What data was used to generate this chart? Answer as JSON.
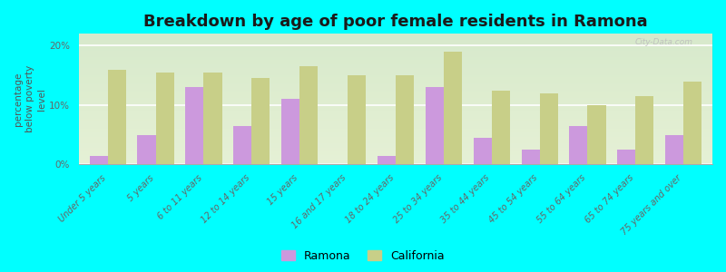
{
  "title": "Breakdown by age of poor female residents in Ramona",
  "ylabel": "percentage\nbelow poverty\nlevel",
  "background_color": "#00FFFF",
  "plot_bg_gradient_top": "#f0f5e0",
  "plot_bg_gradient_bottom": "#e8f0d8",
  "categories": [
    "Under 5 years",
    "5 years",
    "6 to 11 years",
    "12 to 14 years",
    "15 years",
    "16 and 17 years",
    "18 to 24 years",
    "25 to 34 years",
    "35 to 44 years",
    "45 to 54 years",
    "55 to 64 years",
    "65 to 74 years",
    "75 years and over"
  ],
  "ramona": [
    1.5,
    5.0,
    13.0,
    6.5,
    11.0,
    0.0,
    1.5,
    13.0,
    4.5,
    2.5,
    6.5,
    2.5,
    5.0
  ],
  "california": [
    16.0,
    15.5,
    15.5,
    14.5,
    16.5,
    15.0,
    15.0,
    19.0,
    12.5,
    12.0,
    10.0,
    11.5,
    14.0
  ],
  "ramona_color": "#cc99dd",
  "california_color": "#c8cf88",
  "legend_labels": [
    "Ramona",
    "California"
  ],
  "yticks": [
    0,
    10,
    20
  ],
  "ylim": [
    0,
    22
  ],
  "bar_width": 0.38,
  "title_fontsize": 13,
  "tick_fontsize": 7.0,
  "ylabel_fontsize": 7.5,
  "watermark": "City-Data.com"
}
